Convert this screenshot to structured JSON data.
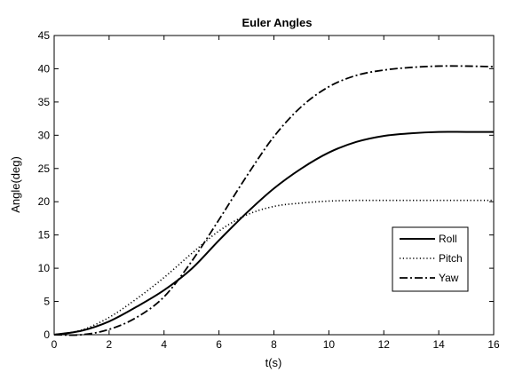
{
  "chart_data": {
    "type": "line",
    "title": "Euler Angles",
    "xlabel": "t(s)",
    "ylabel": "Angle(deg)",
    "xlim": [
      0,
      16
    ],
    "ylim": [
      0,
      45
    ],
    "xticks": [
      0,
      2,
      4,
      6,
      8,
      10,
      12,
      14,
      16
    ],
    "yticks": [
      0,
      5,
      10,
      15,
      20,
      25,
      30,
      35,
      40,
      45
    ],
    "grid": false,
    "legend_position": "right",
    "series": [
      {
        "name": "Roll",
        "style": "solid",
        "x": [
          0,
          1,
          2,
          3,
          4,
          5,
          6,
          7,
          8,
          9,
          10,
          11,
          12,
          13,
          14,
          15,
          16
        ],
        "y": [
          0,
          0.6,
          2.0,
          4.2,
          6.7,
          9.9,
          14.2,
          18.3,
          22.0,
          25.0,
          27.4,
          29.0,
          29.9,
          30.3,
          30.5,
          30.5,
          30.5
        ]
      },
      {
        "name": "Pitch",
        "style": "dotted",
        "x": [
          0,
          1,
          2,
          3,
          4,
          5,
          6,
          7,
          8,
          9,
          10,
          11,
          12,
          13,
          14,
          15,
          16
        ],
        "y": [
          0,
          0.7,
          2.6,
          5.4,
          8.6,
          12.2,
          15.6,
          18.0,
          19.3,
          19.8,
          20.1,
          20.2,
          20.2,
          20.2,
          20.2,
          20.2,
          20.2
        ]
      },
      {
        "name": "Yaw",
        "style": "dashdot",
        "x": [
          0,
          1,
          2,
          3,
          4,
          5,
          6,
          7,
          8,
          9,
          10,
          11,
          12,
          13,
          14,
          15,
          16
        ],
        "y": [
          0,
          0,
          0.8,
          2.6,
          5.7,
          11.0,
          17.3,
          23.8,
          29.8,
          34.3,
          37.3,
          39.0,
          39.8,
          40.2,
          40.4,
          40.4,
          40.3
        ]
      }
    ]
  }
}
